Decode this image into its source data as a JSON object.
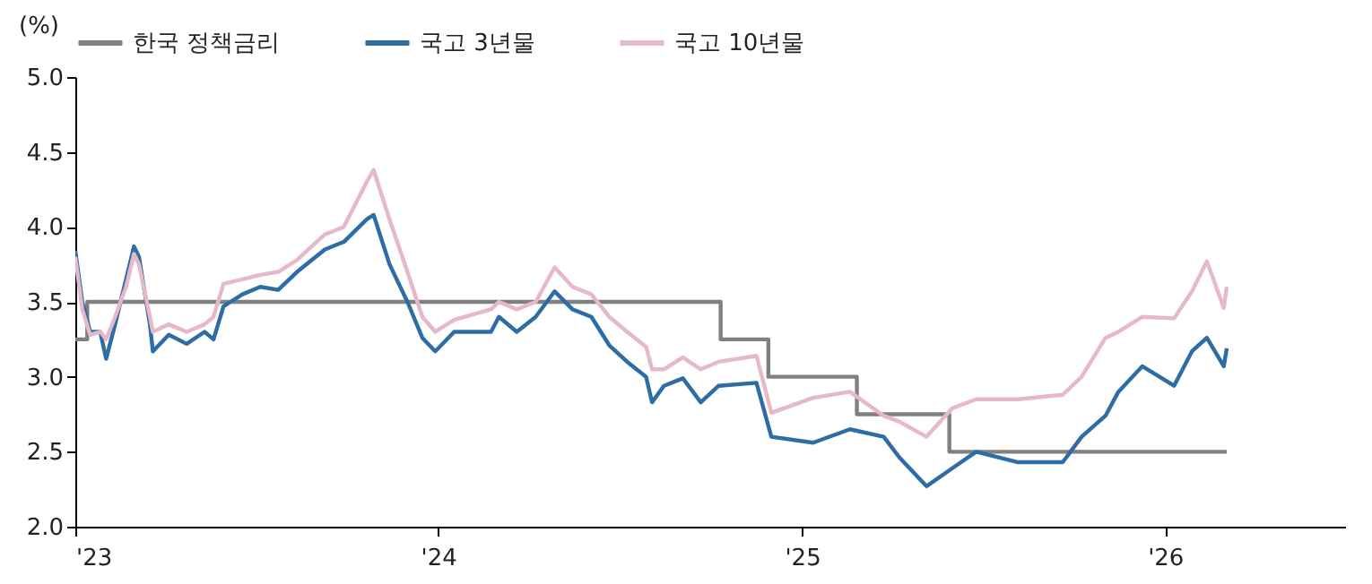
{
  "chart_data": {
    "type": "line",
    "ylabel": "(%)",
    "xlim": [
      "2023-01-01",
      "2026-07-01"
    ],
    "xticks": [
      {
        "value": "2023-01-01",
        "label": "'23"
      },
      {
        "value": "2024-01-01",
        "label": "'24"
      },
      {
        "value": "2025-01-01",
        "label": "'25"
      },
      {
        "value": "2026-01-01",
        "label": "'26"
      }
    ],
    "ylim": [
      2.0,
      5.0
    ],
    "yticks": [
      {
        "value": 2.0,
        "label": "2.0"
      },
      {
        "value": 2.5,
        "label": "2.5"
      },
      {
        "value": 3.0,
        "label": "3.0"
      },
      {
        "value": 3.5,
        "label": "3.5"
      },
      {
        "value": 4.0,
        "label": "4.0"
      },
      {
        "value": 4.5,
        "label": "4.5"
      },
      {
        "value": 5.0,
        "label": "5.0"
      }
    ],
    "grid": false,
    "legend": "top",
    "marker": "none",
    "line_style": "solid",
    "series": [
      {
        "name": "한국 정책금리",
        "type": "step",
        "color": "#808080",
        "x": [
          "2023-01-01",
          "2023-01-13",
          "2024-10-11",
          "2024-11-28",
          "2025-02-25",
          "2025-05-29",
          "2026-03-04"
        ],
        "values": [
          3.25,
          3.5,
          3.25,
          3.0,
          2.75,
          2.5,
          2.5
        ]
      },
      {
        "name": "국고 3년물",
        "color": "#2e6ca4",
        "x": [
          "2023-01-01",
          "2023-01-08",
          "2023-01-16",
          "2023-01-26",
          "2023-02-01",
          "2023-02-10",
          "2023-02-21",
          "2023-03-01",
          "2023-03-06",
          "2023-03-17",
          "2023-03-20",
          "2023-04-05",
          "2023-04-23",
          "2023-05-11",
          "2023-05-20",
          "2023-05-30",
          "2023-06-18",
          "2023-07-06",
          "2023-07-24",
          "2023-08-12",
          "2023-09-09",
          "2023-09-28",
          "2023-10-21",
          "2023-10-28",
          "2023-11-13",
          "2023-12-01",
          "2023-12-16",
          "2023-12-29",
          "2024-01-17",
          "2024-02-23",
          "2024-03-02",
          "2024-03-20",
          "2024-04-08",
          "2024-04-27",
          "2024-05-15",
          "2024-06-03",
          "2024-06-21",
          "2024-07-09",
          "2024-07-28",
          "2024-08-03",
          "2024-08-15",
          "2024-09-03",
          "2024-09-21",
          "2024-10-09",
          "2024-11-16",
          "2024-12-01",
          "2025-01-12",
          "2025-02-18",
          "2025-03-24",
          "2025-04-09",
          "2025-05-06",
          "2025-06-01",
          "2025-06-25",
          "2025-08-06",
          "2025-09-20",
          "2025-10-09",
          "2025-11-02",
          "2025-11-15",
          "2025-12-09",
          "2026-01-10",
          "2026-01-28",
          "2026-02-12",
          "2026-03-01",
          "2026-03-04"
        ],
        "values": [
          3.84,
          3.5,
          3.3,
          3.3,
          3.12,
          3.35,
          3.65,
          3.87,
          3.8,
          3.35,
          3.17,
          3.28,
          3.22,
          3.3,
          3.25,
          3.47,
          3.55,
          3.6,
          3.58,
          3.7,
          3.85,
          3.9,
          4.05,
          4.08,
          3.75,
          3.5,
          3.26,
          3.17,
          3.3,
          3.3,
          3.4,
          3.3,
          3.4,
          3.57,
          3.45,
          3.4,
          3.21,
          3.1,
          3.0,
          2.83,
          2.94,
          2.99,
          2.83,
          2.94,
          2.96,
          2.6,
          2.56,
          2.65,
          2.6,
          2.46,
          2.27,
          2.39,
          2.5,
          2.43,
          2.43,
          2.6,
          2.74,
          2.9,
          3.07,
          2.94,
          3.17,
          3.26,
          3.07,
          3.19
        ]
      },
      {
        "name": "국고 10년물",
        "color": "#e6b8c8",
        "x": [
          "2023-01-01",
          "2023-01-08",
          "2023-01-16",
          "2023-01-26",
          "2023-02-01",
          "2023-02-10",
          "2023-02-21",
          "2023-03-01",
          "2023-03-06",
          "2023-03-17",
          "2023-03-20",
          "2023-04-05",
          "2023-04-23",
          "2023-05-11",
          "2023-05-20",
          "2023-05-30",
          "2023-06-18",
          "2023-07-06",
          "2023-07-24",
          "2023-08-12",
          "2023-09-09",
          "2023-09-28",
          "2023-10-21",
          "2023-10-28",
          "2023-11-13",
          "2023-12-01",
          "2023-12-16",
          "2023-12-29",
          "2024-01-17",
          "2024-02-23",
          "2024-03-02",
          "2024-03-20",
          "2024-04-08",
          "2024-04-27",
          "2024-05-15",
          "2024-06-03",
          "2024-06-21",
          "2024-07-09",
          "2024-07-28",
          "2024-08-03",
          "2024-08-15",
          "2024-09-03",
          "2024-09-21",
          "2024-10-09",
          "2024-11-16",
          "2024-12-01",
          "2025-01-12",
          "2025-02-18",
          "2025-03-24",
          "2025-04-09",
          "2025-05-06",
          "2025-06-01",
          "2025-06-25",
          "2025-08-06",
          "2025-09-20",
          "2025-10-09",
          "2025-11-02",
          "2025-11-15",
          "2025-12-09",
          "2026-01-10",
          "2026-01-28",
          "2026-02-12",
          "2026-03-01",
          "2026-03-04"
        ],
        "values": [
          3.8,
          3.45,
          3.28,
          3.3,
          3.25,
          3.4,
          3.6,
          3.82,
          3.75,
          3.4,
          3.3,
          3.35,
          3.3,
          3.35,
          3.4,
          3.62,
          3.65,
          3.68,
          3.7,
          3.78,
          3.95,
          4.0,
          4.3,
          4.38,
          4.05,
          3.7,
          3.4,
          3.3,
          3.38,
          3.45,
          3.5,
          3.45,
          3.5,
          3.73,
          3.6,
          3.55,
          3.4,
          3.3,
          3.2,
          3.05,
          3.05,
          3.13,
          3.05,
          3.1,
          3.14,
          2.76,
          2.86,
          2.9,
          2.74,
          2.7,
          2.6,
          2.79,
          2.85,
          2.85,
          2.88,
          3.0,
          3.26,
          3.3,
          3.4,
          3.39,
          3.57,
          3.77,
          3.46,
          3.6
        ]
      }
    ]
  }
}
